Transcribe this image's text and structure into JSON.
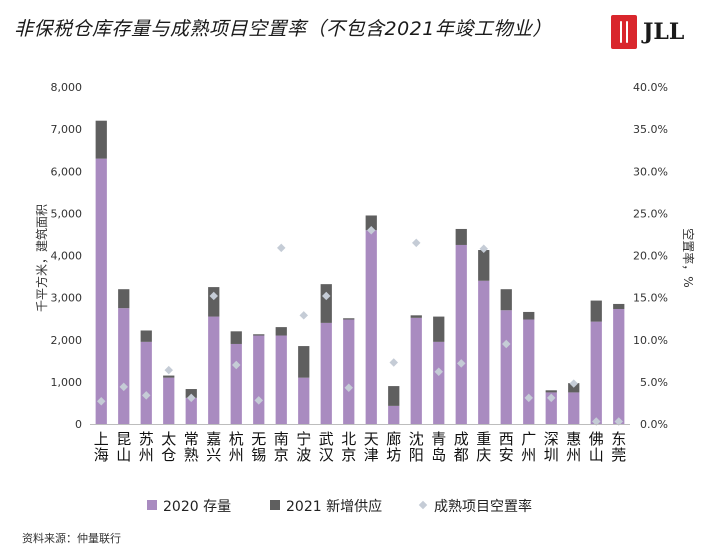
{
  "header": {
    "title": "非保税仓库存量与成熟项目空置率（不包含2021年竣工物业）",
    "logo_text": "JLL"
  },
  "footer": {
    "source": "资料来源：仲量联行"
  },
  "colors": {
    "stock2020": "#a98bc0",
    "new2021": "#5f5f5f",
    "vacancy": "#c5ccd6",
    "brand": "#d9262c"
  },
  "chart_data": {
    "type": "bar",
    "stacked": true,
    "title": "非保税仓库存量与成熟项目空置率（不包含2021年竣工物业）",
    "ylabel": "千平方米，建筑面积",
    "y2label": "空置率，%",
    "ylim": [
      0,
      8000
    ],
    "y2lim": [
      0,
      40
    ],
    "yticks": [
      "0",
      "1,000",
      "2,000",
      "3,000",
      "4,000",
      "5,000",
      "6,000",
      "7,000",
      "8,000"
    ],
    "y2ticks": [
      "0.0%",
      "5.0%",
      "10.0%",
      "15.0%",
      "20.0%",
      "25.0%",
      "30.0%",
      "35.0%",
      "40.0%"
    ],
    "categories": [
      "上海",
      "昆山",
      "苏州",
      "太仓",
      "常熟",
      "嘉兴",
      "杭州",
      "无锡",
      "南京",
      "宁波",
      "武汉",
      "北京",
      "天津",
      "廊坊",
      "沈阳",
      "青岛",
      "成都",
      "重庆",
      "西安",
      "广州",
      "深圳",
      "惠州",
      "佛山",
      "东莞"
    ],
    "series": [
      {
        "name": "2020 存量",
        "kind": "bar",
        "values": [
          6300,
          2750,
          1950,
          1100,
          620,
          2550,
          1900,
          2100,
          2100,
          1100,
          2400,
          2480,
          4600,
          430,
          2520,
          1950,
          4250,
          3400,
          2700,
          2480,
          750,
          750,
          2430,
          2730
        ]
      },
      {
        "name": "2021 新增供应",
        "kind": "bar",
        "values": [
          900,
          450,
          270,
          50,
          210,
          700,
          300,
          30,
          200,
          750,
          920,
          30,
          350,
          470,
          60,
          600,
          380,
          730,
          500,
          180,
          50,
          220,
          500,
          120
        ]
      },
      {
        "name": "成熟项目空置率",
        "kind": "scatter",
        "values": [
          2.7,
          4.4,
          3.4,
          6.4,
          3.1,
          15.2,
          7.0,
          2.8,
          20.9,
          12.9,
          15.2,
          4.3,
          23.0,
          7.3,
          21.5,
          6.2,
          7.2,
          20.8,
          9.5,
          3.1,
          3.1,
          4.8,
          0.3,
          0.3
        ]
      }
    ],
    "legend": {
      "placement": "bottom"
    },
    "grid": false
  }
}
